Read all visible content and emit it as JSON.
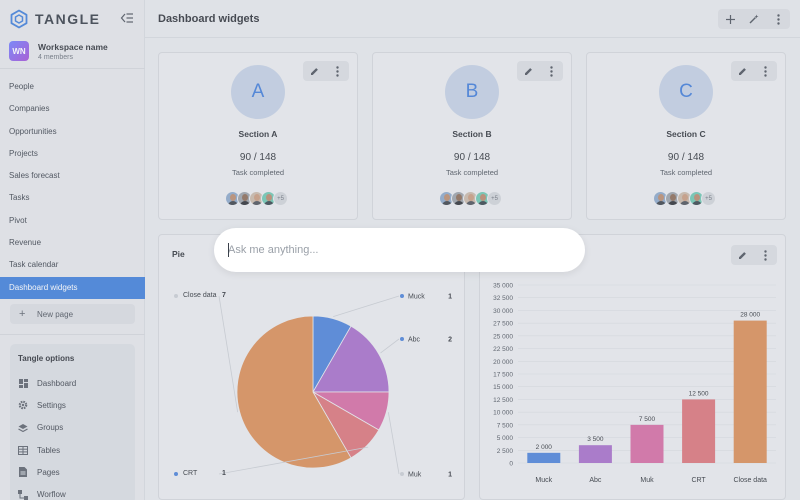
{
  "brand": {
    "name": "TANGLE"
  },
  "workspace": {
    "initials": "WN",
    "name": "Workspace name",
    "members": "4 members"
  },
  "nav": {
    "items": [
      {
        "label": "People"
      },
      {
        "label": "Companies"
      },
      {
        "label": "Opportunities"
      },
      {
        "label": "Projects"
      },
      {
        "label": "Sales forecast"
      },
      {
        "label": "Tasks"
      },
      {
        "label": "Pivot"
      },
      {
        "label": "Revenue"
      },
      {
        "label": "Task calendar"
      },
      {
        "label": "Dashboard widgets"
      }
    ],
    "new_page": "New page"
  },
  "options": {
    "title": "Tangle options",
    "items": [
      {
        "label": "Dashboard",
        "icon": "dashboard-icon"
      },
      {
        "label": "Settings",
        "icon": "gear-icon"
      },
      {
        "label": "Groups",
        "icon": "layers-icon"
      },
      {
        "label": "Tables",
        "icon": "table-icon"
      },
      {
        "label": "Pages",
        "icon": "page-icon"
      },
      {
        "label": "Worflow",
        "icon": "workflow-icon"
      }
    ]
  },
  "header": {
    "title": "Dashboard widgets"
  },
  "sections": [
    {
      "letter": "A",
      "title": "Section A",
      "count": "90 / 148",
      "subtitle": "Task completed",
      "more": "+5"
    },
    {
      "letter": "B",
      "title": "Section B",
      "count": "90 / 148",
      "subtitle": "Task completed",
      "more": "+5"
    },
    {
      "letter": "C",
      "title": "Section C",
      "count": "90 / 148",
      "subtitle": "Task completed",
      "more": "+5"
    }
  ],
  "ask": {
    "placeholder": "Ask me anything..."
  },
  "colors": {
    "blue": "#4a80d8",
    "purple": "#a56cc8",
    "pink": "#d56aa2",
    "red": "#db7278",
    "orange": "#d98b54"
  },
  "chart_data": [
    {
      "type": "pie",
      "title": "Pie",
      "slices": [
        {
          "label": "Muck",
          "value": 1,
          "color": "#4a80d8"
        },
        {
          "label": "Abc",
          "value": 2,
          "color": "#a56cc8"
        },
        {
          "label": "Muk",
          "value": 1,
          "color": "#d56aa2"
        },
        {
          "label": "CRT",
          "value": 1,
          "color": "#db7278"
        },
        {
          "label": "Close data",
          "value": 7,
          "color": "#d98b54"
        }
      ]
    },
    {
      "type": "bar",
      "title": "",
      "categories": [
        "Muck",
        "Abc",
        "Muk",
        "CRT",
        "Close data"
      ],
      "values": [
        2000,
        3500,
        7500,
        12500,
        28000
      ],
      "value_labels": [
        "2 000",
        "3 500",
        "7 500",
        "12 500",
        "28 000"
      ],
      "colors": [
        "#4a80d8",
        "#a56cc8",
        "#d56aa2",
        "#db7278",
        "#d98b54"
      ],
      "yticks": [
        0,
        2500,
        5000,
        7500,
        10000,
        12500,
        15000,
        17500,
        20000,
        22500,
        25000,
        27500,
        30000,
        32500,
        35000
      ],
      "ytick_labels": [
        "0",
        "2 500",
        "5 000",
        "7 500",
        "10 000",
        "12 500",
        "15 000",
        "17 500",
        "20 000",
        "22 500",
        "25 000",
        "27 500",
        "30 000",
        "32 500",
        "35 000"
      ],
      "ylim": [
        0,
        35000
      ]
    }
  ]
}
